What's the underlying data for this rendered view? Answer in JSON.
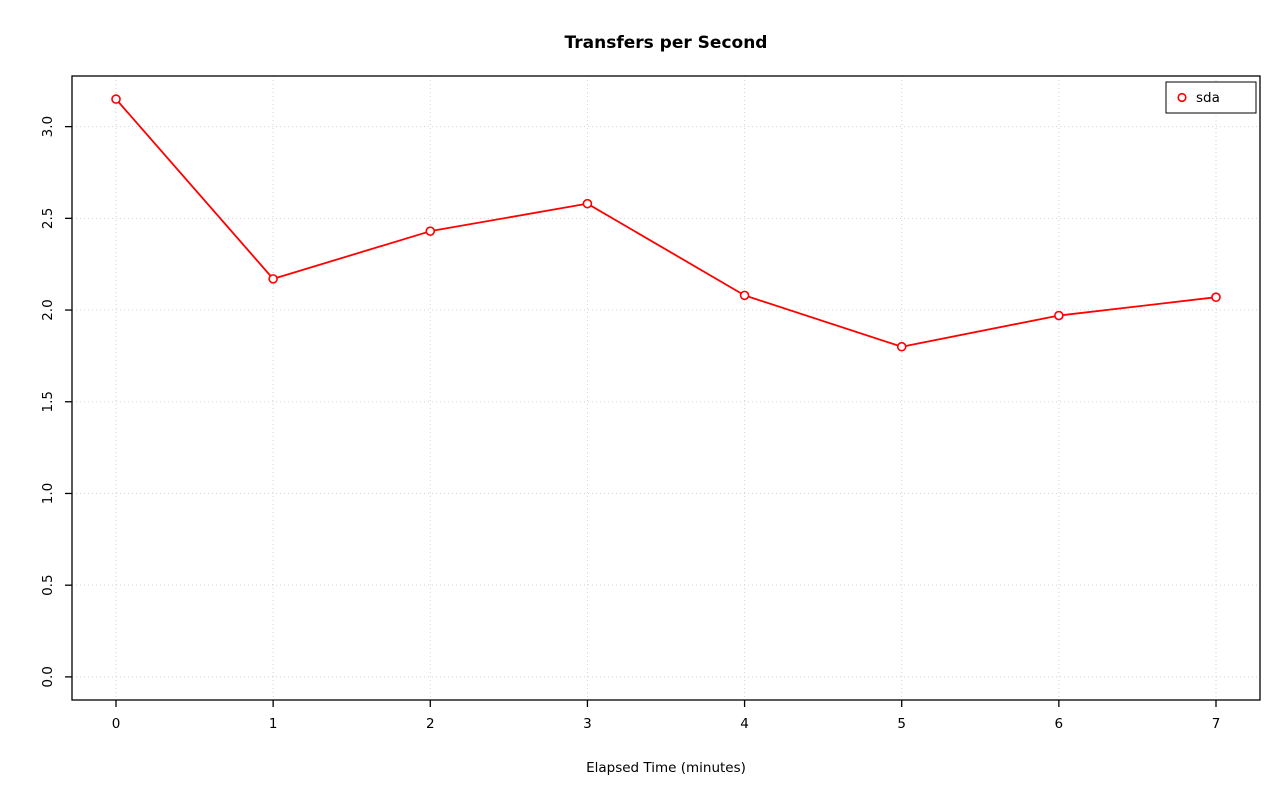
{
  "chart_data": {
    "type": "line",
    "title": "Transfers per Second",
    "xlabel": "Elapsed Time (minutes)",
    "ylabel": "",
    "x": [
      0,
      1,
      2,
      3,
      4,
      5,
      6,
      7
    ],
    "series": [
      {
        "name": "sda",
        "color": "#FF0000",
        "values": [
          3.15,
          2.17,
          2.43,
          2.58,
          2.08,
          1.8,
          1.97,
          2.07
        ]
      }
    ],
    "xticks": [
      "0",
      "1",
      "2",
      "3",
      "4",
      "5",
      "6",
      "7"
    ],
    "ytick_values": [
      0.0,
      0.5,
      1.0,
      1.5,
      2.0,
      2.5,
      3.0
    ],
    "ytick_labels": [
      "0.0",
      "0.5",
      "1.0",
      "1.5",
      "2.0",
      "2.5",
      "3.0"
    ],
    "xlim": [
      0,
      7
    ],
    "ylim": [
      0,
      3.15
    ],
    "grid": true,
    "grid_style": "dotted",
    "grid_color": "#d3d3d3",
    "axis_color": "#000000",
    "background_color": "#ffffff",
    "marker": "open-circle",
    "legend": {
      "position": "top-right",
      "entries": [
        {
          "label": "sda",
          "color": "#FF0000",
          "marker": "open-circle"
        }
      ]
    }
  }
}
